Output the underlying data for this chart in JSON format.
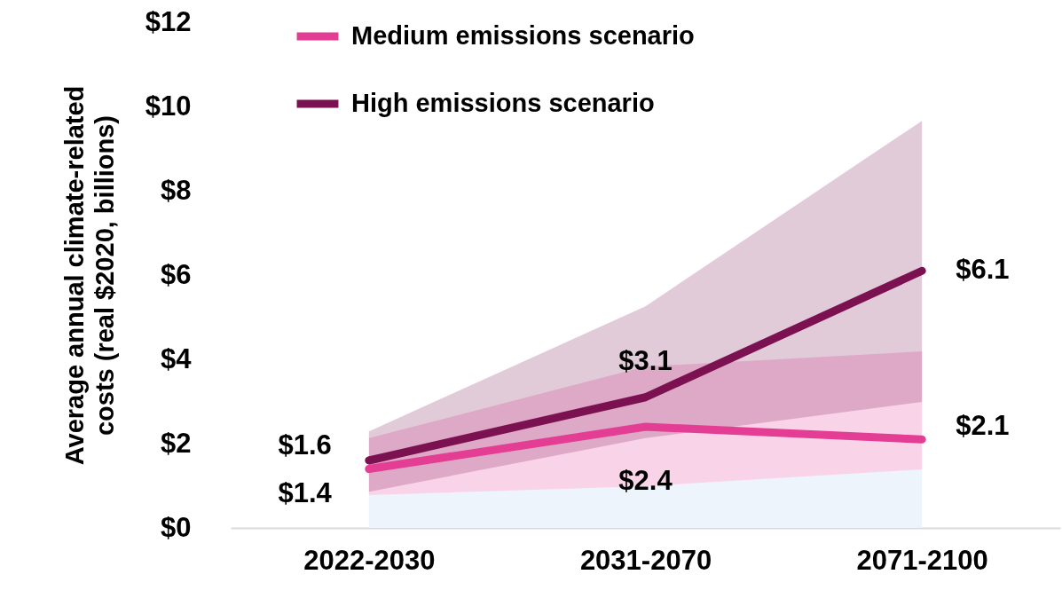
{
  "chart_data": {
    "type": "line",
    "ylabel": "Average annual climate-related\ncosts (real $2020, billions)",
    "categories": [
      "2022-2030",
      "2031-2070",
      "2071-2100"
    ],
    "ylim": [
      0,
      12
    ],
    "yticks": [
      {
        "value": 0,
        "label": "$0"
      },
      {
        "value": 2,
        "label": "$2"
      },
      {
        "value": 4,
        "label": "$4"
      },
      {
        "value": 6,
        "label": "$6"
      },
      {
        "value": 8,
        "label": "$8"
      },
      {
        "value": 10,
        "label": "$10"
      },
      {
        "value": 12,
        "label": "$12"
      }
    ],
    "legend": "top",
    "grid": false,
    "line_style": "solid",
    "marker": "none",
    "series": [
      {
        "type": "area",
        "color": "#eef4fc",
        "values": [
          0.78,
          0.99,
          1.39
        ]
      },
      {
        "name": "Medium emissions scenario",
        "color": "#e33d94",
        "values": [
          1.4,
          2.4,
          2.1
        ],
        "value_labels": [
          "$1.4",
          "$2.4",
          "$2.1"
        ],
        "lower": [
          0.78,
          0.99,
          1.39
        ],
        "upper": [
          2.13,
          3.83,
          4.19
        ]
      },
      {
        "name": "High emissions scenario",
        "color": "#7b1150",
        "values": [
          1.6,
          3.1,
          6.1
        ],
        "value_labels": [
          "$1.6",
          "$3.1",
          "$6.1"
        ],
        "lower": [
          0.86,
          2.13,
          2.99
        ],
        "upper": [
          2.29,
          5.26,
          9.66
        ]
      }
    ]
  }
}
